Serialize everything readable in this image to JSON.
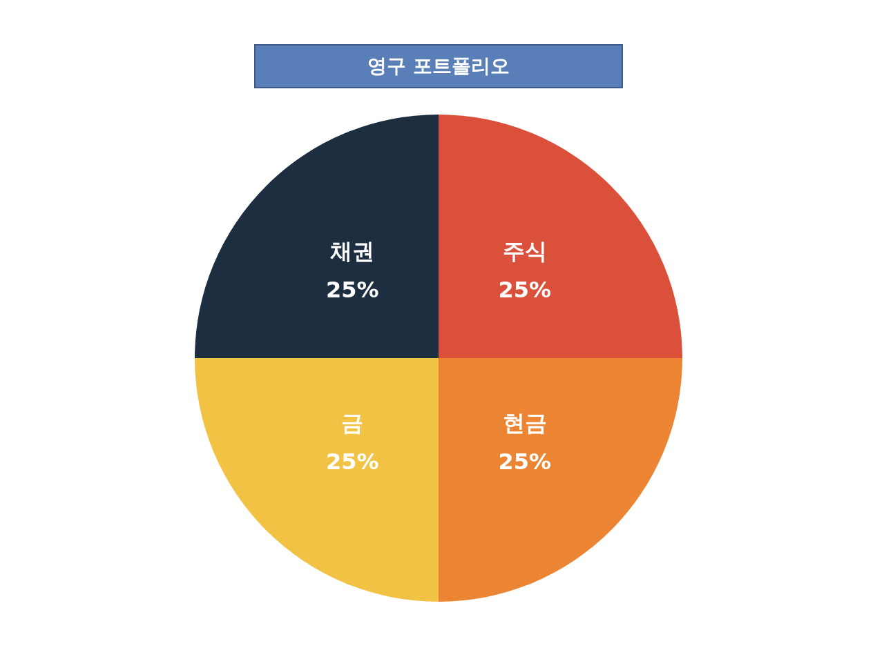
{
  "chart_data": {
    "type": "pie",
    "title": "영구 포트폴리오",
    "categories": [
      "주식",
      "현금",
      "금",
      "채권"
    ],
    "values": [
      25,
      25,
      25,
      25
    ],
    "colors": [
      "#db503a",
      "#ec8533",
      "#f2c244",
      "#1c2e40"
    ],
    "value_labels": [
      "25%",
      "25%",
      "25%",
      "25%"
    ],
    "legend": false
  }
}
